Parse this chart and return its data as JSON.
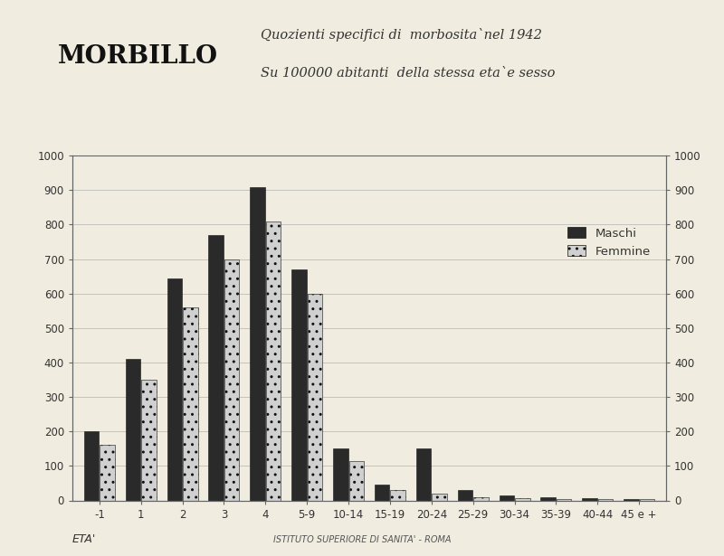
{
  "categories": [
    "-1",
    "1",
    "2",
    "3",
    "4",
    "5-9",
    "10-14",
    "15-19",
    "20-24",
    "25-29",
    "30-34",
    "35-39",
    "40-44",
    "45 e +"
  ],
  "maschi": [
    200,
    410,
    645,
    770,
    910,
    670,
    150,
    45,
    150,
    30,
    15,
    10,
    7,
    5
  ],
  "femmine": [
    160,
    350,
    560,
    700,
    810,
    600,
    115,
    30,
    20,
    10,
    7,
    5,
    4,
    4
  ],
  "bar_color_maschi": "#2a2a2a",
  "bar_color_femmine": "#d0d0d0",
  "hatch_femmine": "..",
  "background_color": "#f0ede0",
  "title_left": "MORBILLO",
  "title_right_line1": "Quozienti specifici di  morbosita`nel 1942",
  "title_right_line2": "Su 100000 abitanti  della stessa eta`e sesso",
  "xlabel": "ETA'",
  "ylim": [
    0,
    1000
  ],
  "yticks": [
    0,
    100,
    200,
    300,
    400,
    500,
    600,
    700,
    800,
    900,
    1000
  ],
  "legend_maschi": "Maschi",
  "legend_femmine": "Femmine",
  "footer": "ISTITUTO SUPERIORE DI SANITA' - ROMA",
  "grid_color": "#bbbbbb",
  "axes_color": "#666666",
  "bar_width": 0.36,
  "bar_gap": 0.02
}
